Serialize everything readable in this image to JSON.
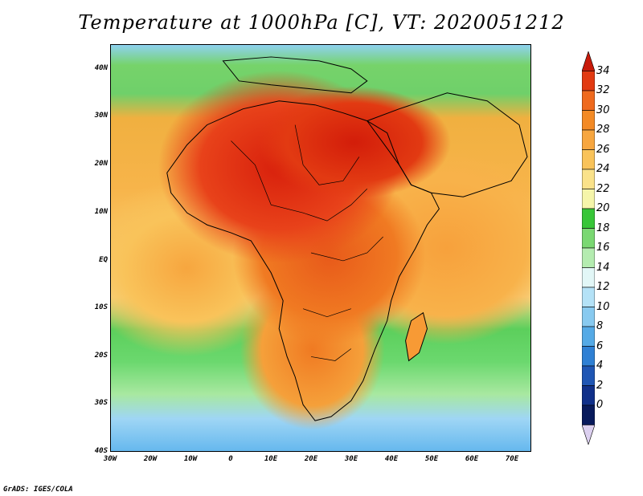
{
  "title": "Temperature at 1000hPa [C], VT: 2020051212",
  "footer": "GrADS: IGES/COLA",
  "map": {
    "lat_labels": [
      "40N",
      "30N",
      "20N",
      "10N",
      "EQ",
      "10S",
      "20S",
      "30S",
      "40S"
    ],
    "lon_labels": [
      "30W",
      "20W",
      "10W",
      "0",
      "10E",
      "20E",
      "30E",
      "40E",
      "50E",
      "60E",
      "70E"
    ]
  },
  "colorbar": {
    "labels": [
      "34",
      "32",
      "30",
      "28",
      "26",
      "24",
      "22",
      "20",
      "18",
      "16",
      "14",
      "12",
      "10",
      "8",
      "6",
      "4",
      "2",
      "0"
    ],
    "colors": [
      "#c81a0a",
      "#e23a12",
      "#ef6a1e",
      "#f38a25",
      "#f7a63f",
      "#f9c35a",
      "#fae28a",
      "#f5f5aa",
      "#38c638",
      "#7ad872",
      "#b4ecb0",
      "#e2f7f7",
      "#b4e2f7",
      "#88caf0",
      "#55aae6",
      "#2f80d4",
      "#1f56b4",
      "#10308a",
      "#081a5c",
      "#dcd0f0"
    ]
  }
}
